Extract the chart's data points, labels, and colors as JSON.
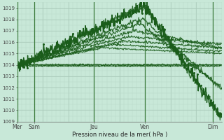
{
  "xlabel": "Pression niveau de la mer( hPa )",
  "ylim": [
    1009,
    1019.5
  ],
  "yticks": [
    1009,
    1010,
    1011,
    1012,
    1013,
    1014,
    1015,
    1016,
    1017,
    1018,
    1019
  ],
  "background_color": "#c8e8d8",
  "grid_major_color": "#a8c8b8",
  "grid_minor_color": "#b8d8c8",
  "line_color": "#1a5c1a",
  "xlim": [
    0,
    192
  ],
  "x_day_labels": [
    "Mer",
    "Sam",
    "Jeu",
    "Ven",
    "Dim"
  ],
  "x_day_positions": [
    0,
    16,
    72,
    120,
    184
  ],
  "figsize": [
    3.2,
    2.0
  ],
  "dpi": 100
}
